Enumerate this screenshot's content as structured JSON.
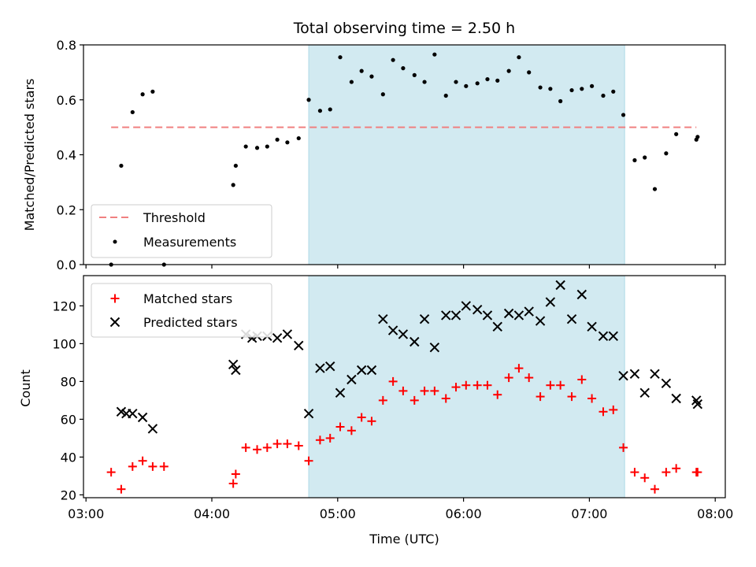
{
  "colors": {
    "shade": "#add8e6",
    "threshold": "#f08080",
    "measurement": "#000000",
    "matched": "#ff0000",
    "predicted": "#000000"
  },
  "chart_data": {
    "title": "Total observing time = 2.50 h",
    "xlabel": "Time (UTC)",
    "x_ticks": [
      "03:00",
      "04:00",
      "05:00",
      "06:00",
      "07:00",
      "08:00"
    ],
    "x_tick_hours": [
      3,
      4,
      5,
      6,
      7,
      8
    ],
    "xlim_hours": [
      2.98,
      8.08
    ],
    "shaded_span_hours": [
      4.77,
      7.28
    ],
    "top": {
      "type": "scatter",
      "ylabel": "Matched/Predicted stars",
      "ylim": [
        0,
        0.8
      ],
      "yticks": [
        "0.0",
        "0.2",
        "0.4",
        "0.6",
        "0.8"
      ],
      "ytick_values": [
        0,
        0.2,
        0.4,
        0.6,
        0.8
      ],
      "threshold": {
        "name": "Threshold",
        "value": 0.5,
        "x_range_hours": [
          3.2,
          7.85
        ]
      },
      "legend": [
        "Threshold",
        "Measurements"
      ],
      "legend_position": "lower-left",
      "measurements": {
        "name": "Measurements",
        "x_hours": [
          3.2,
          3.28,
          3.37,
          3.45,
          3.53,
          3.62,
          4.17,
          4.19,
          4.27,
          4.36,
          4.44,
          4.52,
          4.6,
          4.69,
          4.77,
          4.86,
          4.94,
          5.02,
          5.11,
          5.19,
          5.27,
          5.36,
          5.44,
          5.52,
          5.61,
          5.69,
          5.77,
          5.86,
          5.94,
          6.02,
          6.11,
          6.19,
          6.27,
          6.36,
          6.44,
          6.52,
          6.61,
          6.69,
          6.77,
          6.86,
          6.94,
          7.02,
          7.11,
          7.19,
          7.27,
          7.36,
          7.44,
          7.52,
          7.61,
          7.69,
          7.85,
          7.86
        ],
        "y": [
          0.0,
          0.36,
          0.555,
          0.62,
          0.63,
          0.0,
          0.29,
          0.36,
          0.43,
          0.425,
          0.43,
          0.455,
          0.445,
          0.46,
          0.6,
          0.56,
          0.565,
          0.755,
          0.665,
          0.705,
          0.685,
          0.62,
          0.745,
          0.715,
          0.69,
          0.665,
          0.765,
          0.615,
          0.665,
          0.65,
          0.66,
          0.675,
          0.67,
          0.705,
          0.755,
          0.7,
          0.645,
          0.64,
          0.595,
          0.635,
          0.64,
          0.65,
          0.615,
          0.63,
          0.545,
          0.38,
          0.39,
          0.275,
          0.405,
          0.475,
          0.455,
          0.465
        ]
      }
    },
    "bottom": {
      "type": "scatter",
      "ylabel": "Count",
      "ylim": [
        18.5,
        136
      ],
      "yticks": [
        "20",
        "40",
        "60",
        "80",
        "100",
        "120"
      ],
      "ytick_values": [
        20,
        40,
        60,
        80,
        100,
        120
      ],
      "legend": [
        "Matched stars",
        "Predicted stars"
      ],
      "legend_position": "upper-left",
      "matched": {
        "name": "Matched stars",
        "x_hours": [
          3.2,
          3.28,
          3.37,
          3.45,
          3.53,
          3.62,
          4.17,
          4.19,
          4.27,
          4.36,
          4.44,
          4.52,
          4.6,
          4.69,
          4.77,
          4.86,
          4.94,
          5.02,
          5.11,
          5.19,
          5.27,
          5.36,
          5.44,
          5.52,
          5.61,
          5.69,
          5.77,
          5.86,
          5.94,
          6.02,
          6.11,
          6.19,
          6.27,
          6.36,
          6.44,
          6.52,
          6.61,
          6.69,
          6.77,
          6.86,
          6.94,
          7.02,
          7.11,
          7.19,
          7.27,
          7.36,
          7.44,
          7.52,
          7.61,
          7.69,
          7.85,
          7.86
        ],
        "y": [
          32,
          23,
          35,
          38,
          35,
          35,
          26,
          31,
          45,
          44,
          45,
          47,
          47,
          46,
          38,
          49,
          50,
          56,
          54,
          61,
          59,
          70,
          80,
          75,
          70,
          75,
          75,
          71,
          77,
          78,
          78,
          78,
          73,
          82,
          87,
          82,
          72,
          78,
          78,
          72,
          81,
          71,
          64,
          65,
          45,
          32,
          29,
          23,
          32,
          34,
          32,
          32
        ]
      },
      "predicted": {
        "name": "Predicted stars",
        "x_hours": [
          3.28,
          3.32,
          3.37,
          3.45,
          3.53,
          4.17,
          4.19,
          4.27,
          4.32,
          4.36,
          4.44,
          4.52,
          4.6,
          4.69,
          4.77,
          4.86,
          4.94,
          5.02,
          5.11,
          5.19,
          5.27,
          5.36,
          5.44,
          5.52,
          5.61,
          5.69,
          5.77,
          5.86,
          5.94,
          6.02,
          6.11,
          6.19,
          6.27,
          6.36,
          6.44,
          6.52,
          6.61,
          6.69,
          6.77,
          6.86,
          6.94,
          7.02,
          7.11,
          7.19,
          7.27,
          7.36,
          7.44,
          7.52,
          7.61,
          7.69,
          7.85,
          7.86
        ],
        "y": [
          64,
          63,
          63,
          61,
          55,
          89,
          86,
          105,
          103,
          104,
          104,
          103,
          105,
          99,
          63,
          87,
          88,
          74,
          81,
          86,
          86,
          113,
          107,
          105,
          101,
          113,
          98,
          115,
          115,
          120,
          118,
          115,
          109,
          116,
          115,
          117,
          112,
          122,
          131,
          113,
          126,
          109,
          104,
          104,
          83,
          84,
          74,
          84,
          79,
          71,
          70,
          68
        ]
      }
    }
  }
}
